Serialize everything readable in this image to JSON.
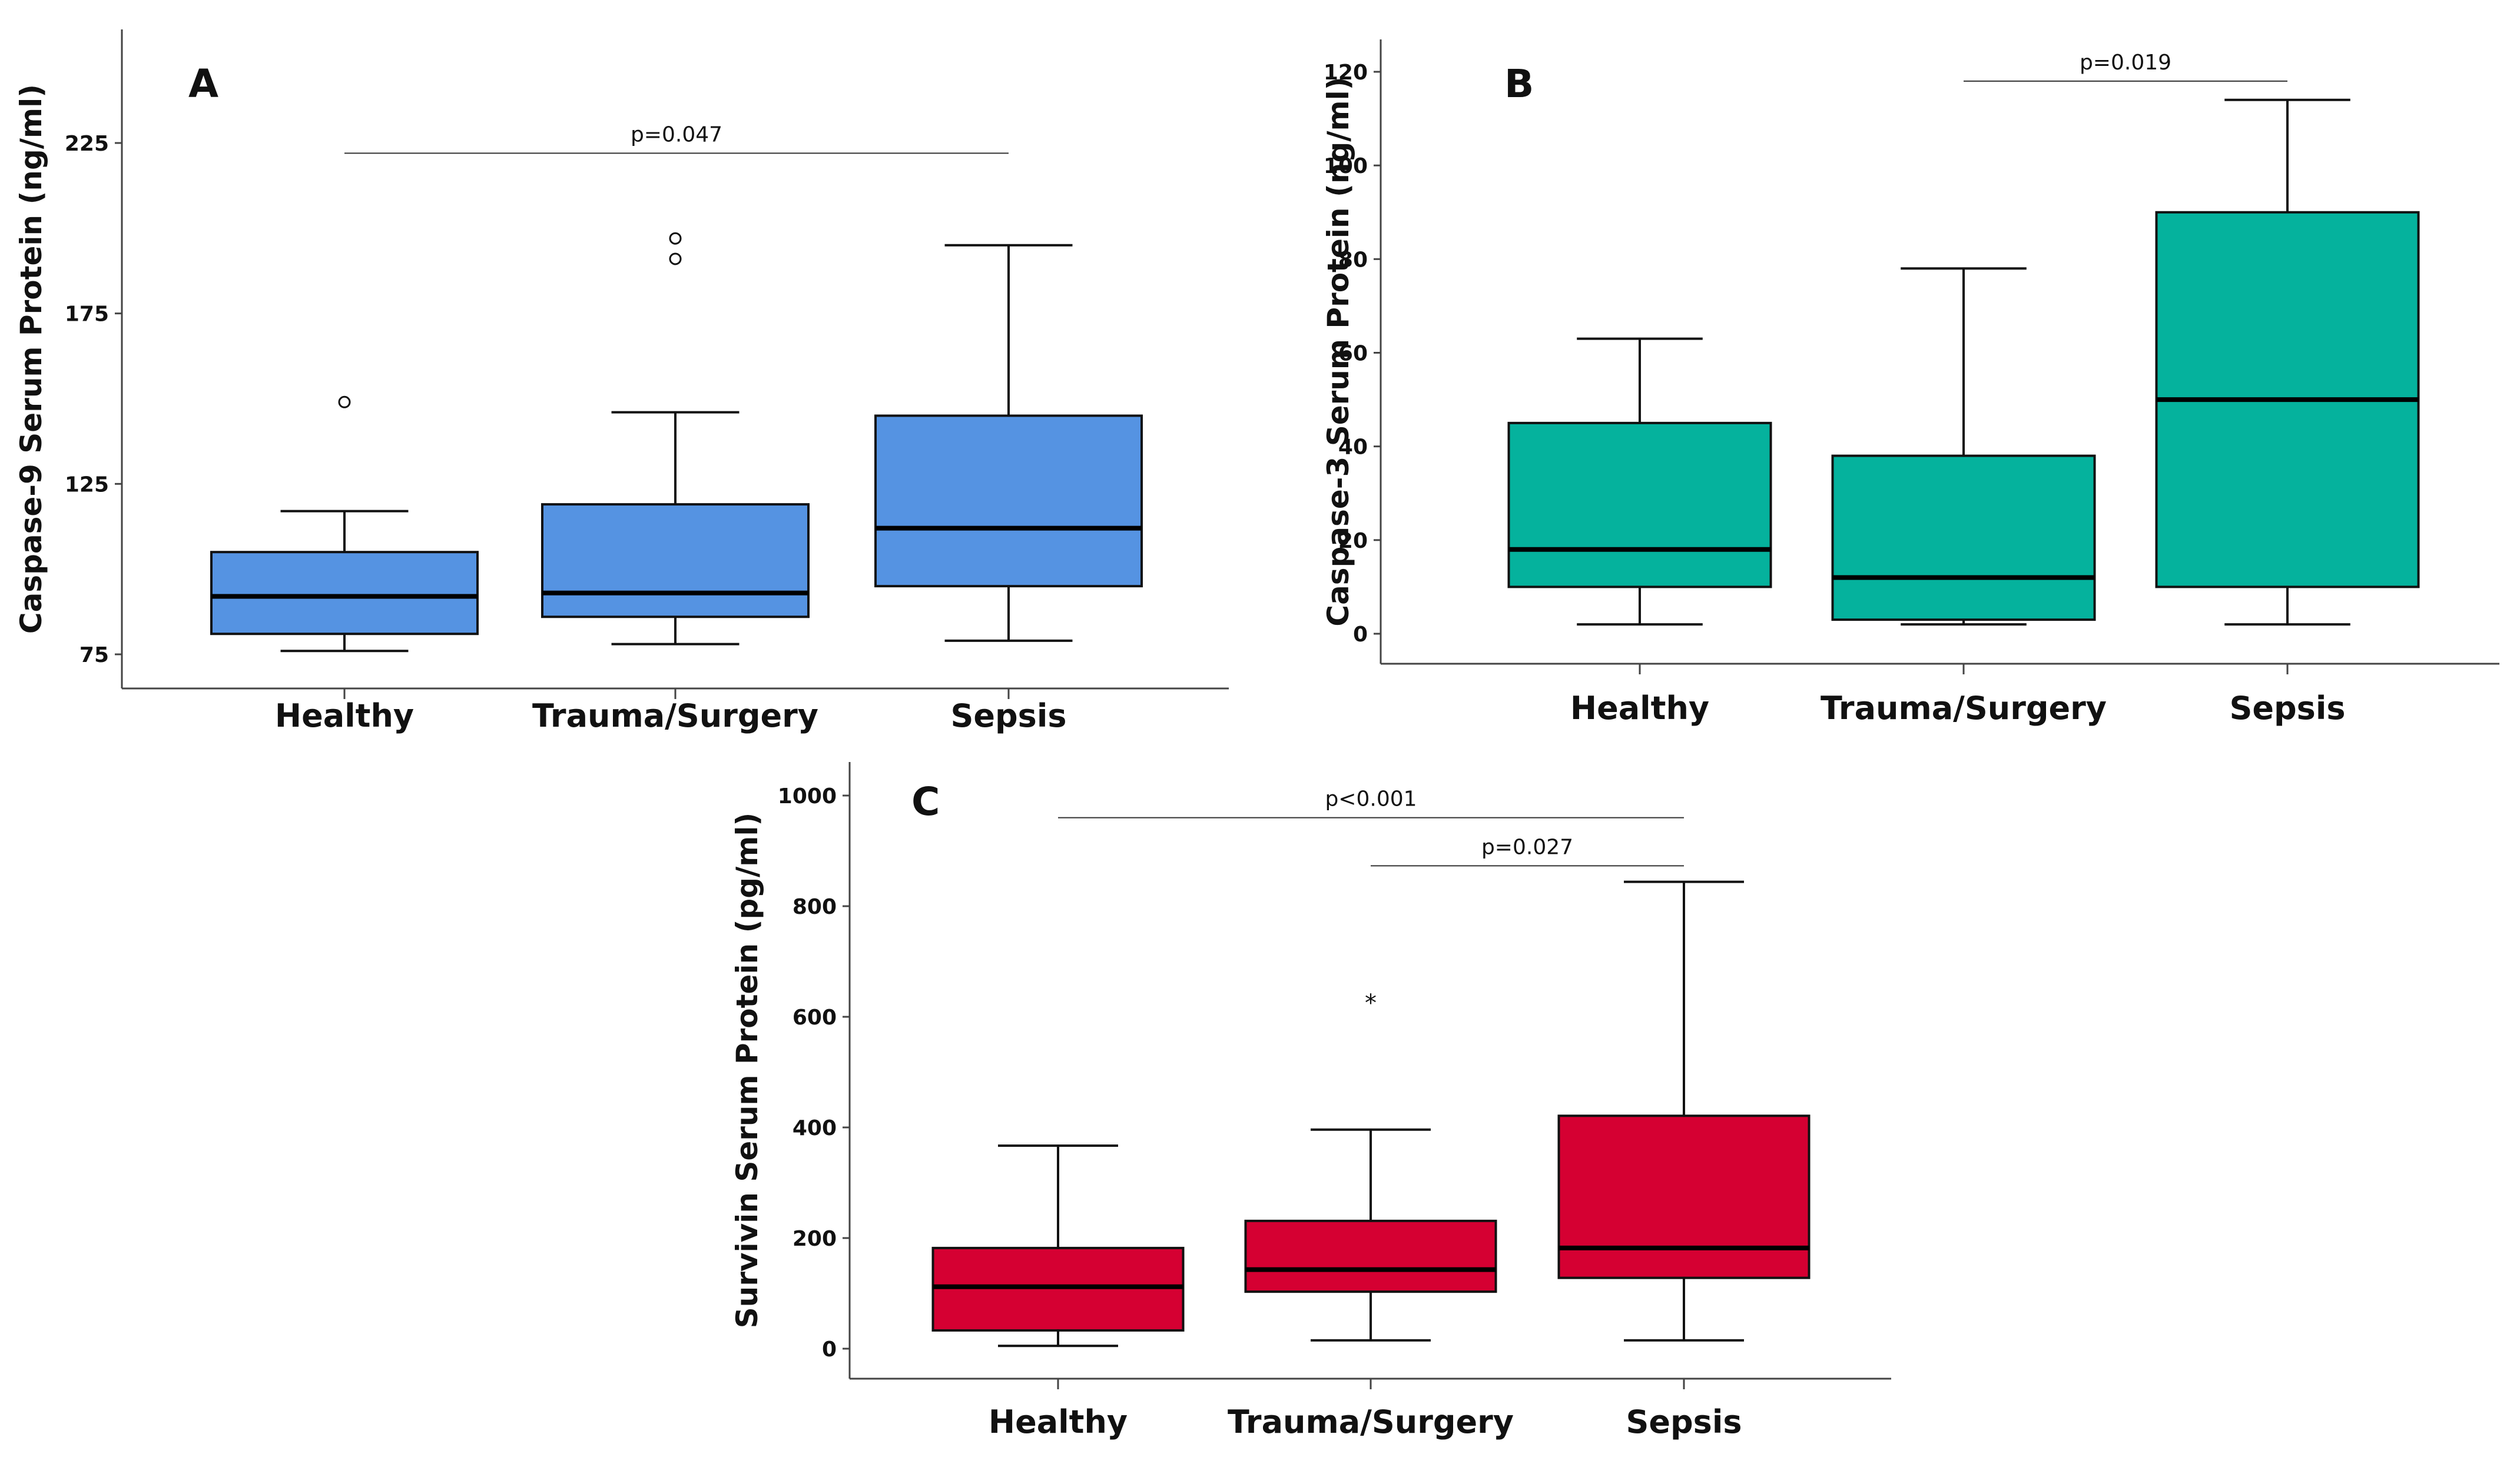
{
  "chart_data": [
    {
      "type": "box",
      "panel": "A",
      "ylabel": "Caspase-9 Serum Protein (ng/ml)",
      "ylim": [
        70,
        260
      ],
      "yticks": [
        75,
        125,
        175,
        225
      ],
      "color": "#5593E2",
      "categories": [
        "Healthy",
        "Trauma/Surgery",
        "Sepsis"
      ],
      "boxes": [
        {
          "category": "Healthy",
          "min": 76,
          "q1": 81,
          "median": 92,
          "q3": 105,
          "max": 117,
          "outliers": [
            {
              "value": 149,
              "marker": "circle"
            }
          ]
        },
        {
          "category": "Trauma/Surgery",
          "min": 78,
          "q1": 86,
          "median": 93,
          "q3": 119,
          "max": 146,
          "outliers": [
            {
              "value": 191,
              "marker": "circle"
            },
            {
              "value": 197,
              "marker": "circle"
            }
          ]
        },
        {
          "category": "Sepsis",
          "min": 79,
          "q1": 95,
          "median": 112,
          "q3": 145,
          "max": 195,
          "outliers": []
        }
      ],
      "comparisons": [
        {
          "from": "Healthy",
          "to": "Sepsis",
          "label": "p=0.047",
          "level": 222
        }
      ]
    },
    {
      "type": "box",
      "panel": "B",
      "ylabel": "Caspase-3 Serum Protein (ng/ml)",
      "ylim": [
        -5,
        127
      ],
      "yticks": [
        0,
        20,
        40,
        60,
        80,
        100,
        120
      ],
      "color": "#05B29D",
      "categories": [
        "Healthy",
        "Trauma/Surgery",
        "Sepsis"
      ],
      "boxes": [
        {
          "category": "Healthy",
          "min": 2,
          "q1": 10,
          "median": 18,
          "q3": 45,
          "max": 63,
          "outliers": []
        },
        {
          "category": "Trauma/Surgery",
          "min": 2,
          "q1": 3,
          "median": 12,
          "q3": 38,
          "max": 78,
          "outliers": []
        },
        {
          "category": "Sepsis",
          "min": 2,
          "q1": 10,
          "median": 50,
          "q3": 90,
          "max": 114,
          "outliers": []
        }
      ],
      "comparisons": [
        {
          "from": "Trauma/Surgery",
          "to": "Sepsis",
          "label": "p=0.019",
          "level": 118
        }
      ]
    },
    {
      "type": "box",
      "panel": "C",
      "ylabel": "Survivin Serum Protein (pg/ml)",
      "ylim": [
        -50,
        1060
      ],
      "yticks": [
        0,
        200,
        400,
        600,
        800,
        1000
      ],
      "color": "#D50032",
      "categories": [
        "Healthy",
        "Trauma/Surgery",
        "Sepsis"
      ],
      "boxes": [
        {
          "category": "Healthy",
          "min": 5,
          "q1": 33,
          "median": 112,
          "q3": 182,
          "max": 367,
          "outliers": []
        },
        {
          "category": "Trauma/Surgery",
          "min": 15,
          "q1": 103,
          "median": 143,
          "q3": 231,
          "max": 396,
          "outliers": [
            {
              "value": 630,
              "marker": "star"
            }
          ]
        },
        {
          "category": "Sepsis",
          "min": 15,
          "q1": 128,
          "median": 182,
          "q3": 421,
          "max": 844,
          "outliers": []
        }
      ],
      "comparisons": [
        {
          "from": "Healthy",
          "to": "Sepsis",
          "label": "p<0.001",
          "level": 960
        },
        {
          "from": "Trauma/Surgery",
          "to": "Sepsis",
          "label": "p=0.027",
          "level": 873
        }
      ]
    }
  ]
}
